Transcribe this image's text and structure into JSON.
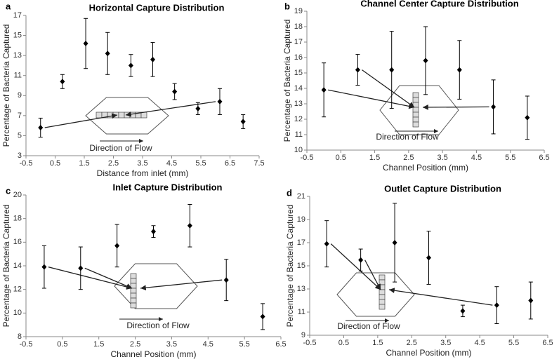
{
  "chart_data": [
    {
      "type": "scatter",
      "panel_label": "a",
      "title": "Horizontal Capture Distribution",
      "x_label": "Distance from inlet (mm)",
      "y_label": "Percentage of Bacteria Captured",
      "annotation": "Direction of Flow",
      "color": "#000000",
      "x": [
        0,
        0.75,
        1.55,
        2.3,
        3.1,
        3.85,
        4.6,
        5.4,
        6.15,
        6.95
      ],
      "values": [
        5.8,
        10.4,
        14.2,
        13.2,
        12.0,
        12.6,
        9.4,
        7.7,
        8.4,
        6.4
      ],
      "errors": [
        0.95,
        0.7,
        2.5,
        2.1,
        1.1,
        1.7,
        0.8,
        0.6,
        1.3,
        0.7
      ],
      "xlim": [
        -0.5,
        7.5
      ],
      "xticks": [
        -0.5,
        0.5,
        1.5,
        2.5,
        3.5,
        4.5,
        5.5,
        6.5,
        7.5
      ],
      "ylim": [
        3,
        17
      ],
      "yticks": [
        3,
        5,
        7,
        9,
        11,
        13,
        15,
        17
      ]
    },
    {
      "type": "scatter",
      "panel_label": "b",
      "title": "Channel Center Capture Distribution",
      "x_label": "Channel Position (mm)",
      "y_label": "Percentage of Bacteria Captured",
      "annotation": "Direction of Flow",
      "color": "#000000",
      "x": [
        0,
        1,
        2,
        3,
        4,
        5,
        6
      ],
      "values": [
        13.9,
        15.2,
        15.2,
        15.8,
        15.2,
        12.8,
        12.1
      ],
      "errors": [
        1.75,
        1.0,
        2.5,
        2.2,
        1.9,
        1.75,
        1.4
      ],
      "xlim": [
        -0.5,
        6.5
      ],
      "xticks": [
        -0.5,
        0.5,
        1.5,
        2.5,
        3.5,
        4.5,
        5.5,
        6.5
      ],
      "ylim": [
        10,
        19
      ],
      "yticks": [
        10,
        11,
        12,
        13,
        14,
        15,
        16,
        17,
        18,
        19
      ]
    },
    {
      "type": "scatter",
      "panel_label": "c",
      "title": "Inlet Capture Distribution",
      "x_label": "Channel Position (mm)",
      "y_label": "Percentage of Bacteria Captured",
      "annotation": "Direction of Flow",
      "color": "#000000",
      "x": [
        0,
        1,
        2,
        3,
        4,
        5,
        6
      ],
      "values": [
        13.9,
        13.8,
        15.7,
        16.9,
        17.4,
        12.8,
        9.7
      ],
      "errors": [
        1.8,
        1.8,
        1.8,
        0.5,
        1.8,
        1.75,
        1.1
      ],
      "xlim": [
        -0.5,
        6.5
      ],
      "xticks": [
        -0.5,
        0.5,
        1.5,
        2.5,
        3.5,
        4.5,
        5.5,
        6.5
      ],
      "ylim": [
        8,
        20
      ],
      "yticks": [
        8,
        10,
        12,
        14,
        16,
        18,
        20
      ]
    },
    {
      "type": "scatter",
      "panel_label": "d",
      "title": "Outlet Capture Distribution",
      "x_label": "Channel Position (mm)",
      "y_label": "Percentage of Bacteria Captured",
      "annotation": "Direction of Flow",
      "color": "#000000",
      "x": [
        0,
        1,
        2,
        3,
        4,
        5,
        6
      ],
      "values": [
        16.9,
        15.5,
        17.0,
        15.7,
        11.1,
        11.6,
        12.0
      ],
      "errors": [
        2.0,
        0.95,
        3.4,
        2.3,
        0.5,
        1.6,
        1.6
      ],
      "xlim": [
        -0.5,
        6.5
      ],
      "xticks": [
        -0.5,
        0.5,
        1.5,
        2.5,
        3.5,
        4.5,
        5.5,
        6.5
      ],
      "ylim": [
        9,
        21
      ],
      "yticks": [
        9,
        11,
        13,
        15,
        17,
        19,
        21
      ]
    }
  ]
}
